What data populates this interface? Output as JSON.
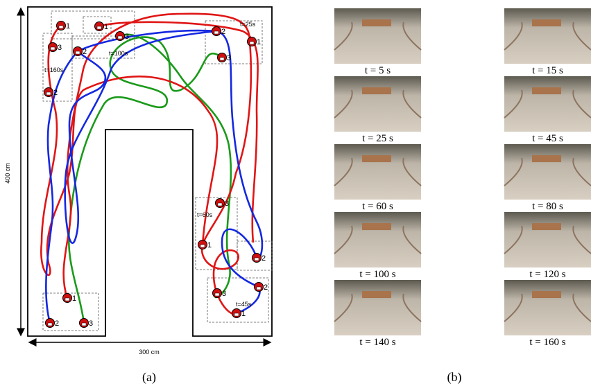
{
  "panel_a": {
    "height_label": "400 cm",
    "width_label": "300 cm",
    "caption": "(a)",
    "time_labels": [
      "t=25s",
      "t=100s",
      "t=160s",
      "t=60s",
      "t=45s"
    ],
    "robot_labels": [
      "1",
      "1",
      "3",
      "3",
      "2",
      "2",
      "2",
      "1",
      "3",
      "3",
      "1",
      "2",
      "2",
      "3",
      "1",
      "1",
      "2",
      "3"
    ]
  },
  "panel_b": {
    "caption": "(b)",
    "frames": [
      "t = 5 s",
      "t = 15 s",
      "t = 25 s",
      "t = 45 s",
      "t = 60 s",
      "t = 80 s",
      "t = 100 s",
      "t = 120 s",
      "t = 140 s",
      "t = 160 s"
    ]
  }
}
